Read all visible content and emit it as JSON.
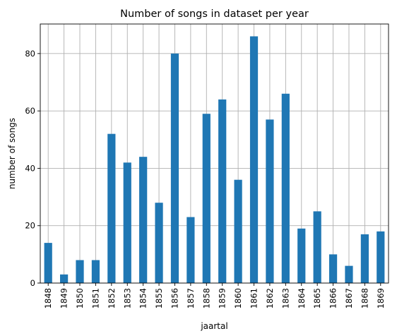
{
  "chart_data": {
    "type": "bar",
    "title": "Number of songs in dataset per year",
    "xlabel": "jaartal",
    "ylabel": "number of songs",
    "categories": [
      "1848",
      "1849",
      "1850",
      "1851",
      "1852",
      "1853",
      "1854",
      "1855",
      "1856",
      "1857",
      "1858",
      "1859",
      "1860",
      "1861",
      "1862",
      "1863",
      "1864",
      "1865",
      "1866",
      "1867",
      "1868",
      "1869"
    ],
    "values": [
      14,
      3,
      8,
      8,
      52,
      42,
      44,
      28,
      80,
      23,
      59,
      64,
      36,
      86,
      57,
      66,
      19,
      25,
      10,
      6,
      17,
      18
    ],
    "ylim": [
      0,
      90.3
    ],
    "yticks": [
      0,
      20,
      40,
      60,
      80
    ],
    "grid": true,
    "bar_color": "#1f77b4",
    "grid_color": "#b0b0b0"
  }
}
